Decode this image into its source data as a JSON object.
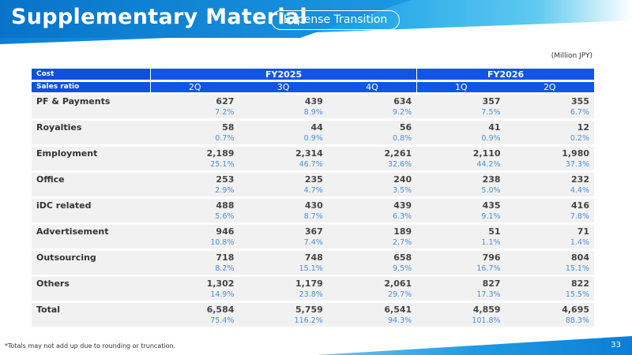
{
  "header": {
    "title": "Supplementary Material",
    "tag": "Expense Transition"
  },
  "unit": "(Million JPY)",
  "table": {
    "corner_top": "Cost",
    "corner_bottom": "Sales ratio",
    "fiscal_years": [
      {
        "label": "FY2025",
        "quarters": [
          "2Q",
          "3Q",
          "4Q"
        ]
      },
      {
        "label": "FY2026",
        "quarters": [
          "1Q",
          "2Q"
        ]
      }
    ],
    "rows": [
      {
        "label": "PF & Payments",
        "values": [
          "627",
          "439",
          "634",
          "357",
          "355"
        ],
        "ratios": [
          "7.2%",
          "8.9%",
          "9.2%",
          "7.5%",
          "6.7%"
        ]
      },
      {
        "label": "Royalties",
        "values": [
          "58",
          "44",
          "56",
          "41",
          "12"
        ],
        "ratios": [
          "0.7%",
          "0.9%",
          "0.8%",
          "0.9%",
          "0.2%"
        ]
      },
      {
        "label": "Employment",
        "values": [
          "2,189",
          "2,314",
          "2,261",
          "2,110",
          "1,980"
        ],
        "ratios": [
          "25.1%",
          "46.7%",
          "32.6%",
          "44.2%",
          "37.3%"
        ]
      },
      {
        "label": "Office",
        "values": [
          "253",
          "235",
          "240",
          "238",
          "232"
        ],
        "ratios": [
          "2.9%",
          "4.7%",
          "3.5%",
          "5.0%",
          "4.4%"
        ]
      },
      {
        "label": "iDC related",
        "values": [
          "488",
          "430",
          "439",
          "435",
          "416"
        ],
        "ratios": [
          "5.6%",
          "8.7%",
          "6.3%",
          "9.1%",
          "7.8%"
        ]
      },
      {
        "label": "Advertisement",
        "values": [
          "946",
          "367",
          "189",
          "51",
          "71"
        ],
        "ratios": [
          "10.8%",
          "7.4%",
          "2.7%",
          "1.1%",
          "1.4%"
        ]
      },
      {
        "label": "Outsourcing",
        "values": [
          "718",
          "748",
          "658",
          "796",
          "804"
        ],
        "ratios": [
          "8.2%",
          "15.1%",
          "9.5%",
          "16.7%",
          "15.1%"
        ]
      },
      {
        "label": "Others",
        "values": [
          "1,302",
          "1,179",
          "2,061",
          "827",
          "822"
        ],
        "ratios": [
          "14.9%",
          "23.8%",
          "29.7%",
          "17.3%",
          "15.5%"
        ]
      },
      {
        "label": "Total",
        "values": [
          "6,584",
          "5,759",
          "6,541",
          "4,859",
          "4,695"
        ],
        "ratios": [
          "75.4%",
          "116.2%",
          "94.3%",
          "101.8%",
          "88.3%"
        ]
      }
    ]
  },
  "footnote": "*Totals may not add up due to rounding or truncation.",
  "page_number": "33",
  "colors": {
    "header_blue": "#1155e6",
    "ratio_blue": "#4b8fe0",
    "row_bg": "#f1f1f1"
  }
}
